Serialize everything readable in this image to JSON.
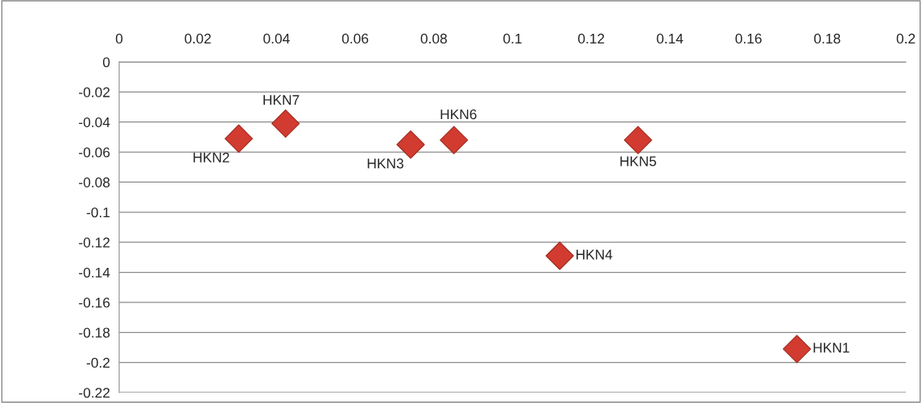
{
  "chart_data": {
    "type": "scatter",
    "x": [
      0.1723,
      0.0304,
      0.0741,
      0.112,
      0.1319,
      0.0851,
      0.0423
    ],
    "values": [
      -0.191,
      -0.051,
      -0.055,
      -0.129,
      -0.052,
      -0.052,
      -0.041
    ],
    "color": "#d23b2f",
    "marker": "diamond",
    "annotations": [
      {
        "text": "HKN1",
        "x": 0.1723,
        "y": -0.191
      },
      {
        "text": "HKN2",
        "x": 0.0304,
        "y": -0.051
      },
      {
        "text": "HKN3",
        "x": 0.0741,
        "y": -0.055
      },
      {
        "text": "HKN4",
        "x": 0.112,
        "y": -0.129
      },
      {
        "text": "HKN5",
        "x": 0.1319,
        "y": -0.052
      },
      {
        "text": "HKN6",
        "x": 0.0851,
        "y": -0.052
      },
      {
        "text": "HKN7",
        "x": 0.0423,
        "y": -0.041
      }
    ],
    "xlim": [
      0,
      0.2
    ],
    "xticks": [
      0,
      0.02,
      0.04,
      0.06,
      0.08,
      0.1,
      0.12,
      0.14,
      0.16,
      0.18,
      0.2
    ],
    "ylim": [
      -0.22,
      0
    ],
    "yticks": [
      0,
      -0.02,
      -0.04,
      -0.06,
      -0.08,
      -0.1,
      -0.12,
      -0.14,
      -0.16,
      -0.18,
      -0.2,
      -0.22
    ],
    "grid": "y",
    "legend": false
  }
}
